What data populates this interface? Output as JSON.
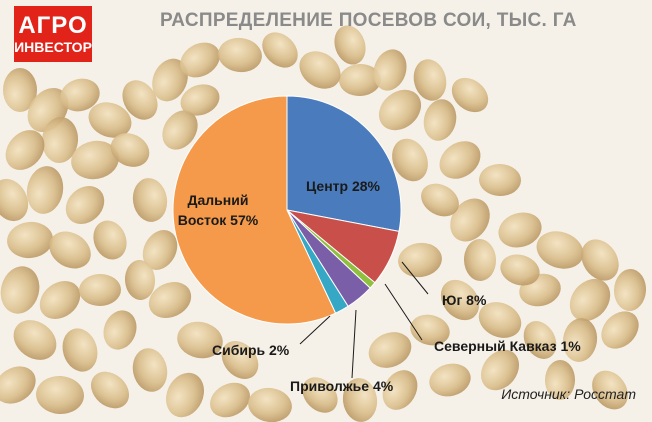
{
  "logo": {
    "line1": "АГРО",
    "line2": "ИНВЕСТОР"
  },
  "source": "Источник: Росстат",
  "colors": {
    "logo_bg": "#e2231a",
    "title": "#8a8a8a"
  },
  "chart_data": {
    "type": "pie",
    "title": "РАСПРЕДЕЛЕНИЕ ПОСЕВОВ СОИ, ТЫС. ГА",
    "slices": [
      {
        "key": "center",
        "label_lines": [
          "Центр 28%"
        ],
        "value": 28,
        "color": "#4a7cbd"
      },
      {
        "key": "south",
        "label_lines": [
          "Юг 8%"
        ],
        "value": 8,
        "color": "#c9504a"
      },
      {
        "key": "caucasus",
        "label_lines": [
          "Северный Кавказ 1%"
        ],
        "value": 1,
        "color": "#8fbf3f"
      },
      {
        "key": "volga",
        "label_lines": [
          "Приволжье 4%"
        ],
        "value": 4,
        "color": "#7a5ea8"
      },
      {
        "key": "siberia",
        "label_lines": [
          "Сибирь 2%"
        ],
        "value": 2,
        "color": "#37a7c6"
      },
      {
        "key": "fareast",
        "label_lines": [
          "Дальний",
          "Восток 57%"
        ],
        "value": 57,
        "color": "#f49a4a"
      }
    ],
    "legend": "none"
  }
}
